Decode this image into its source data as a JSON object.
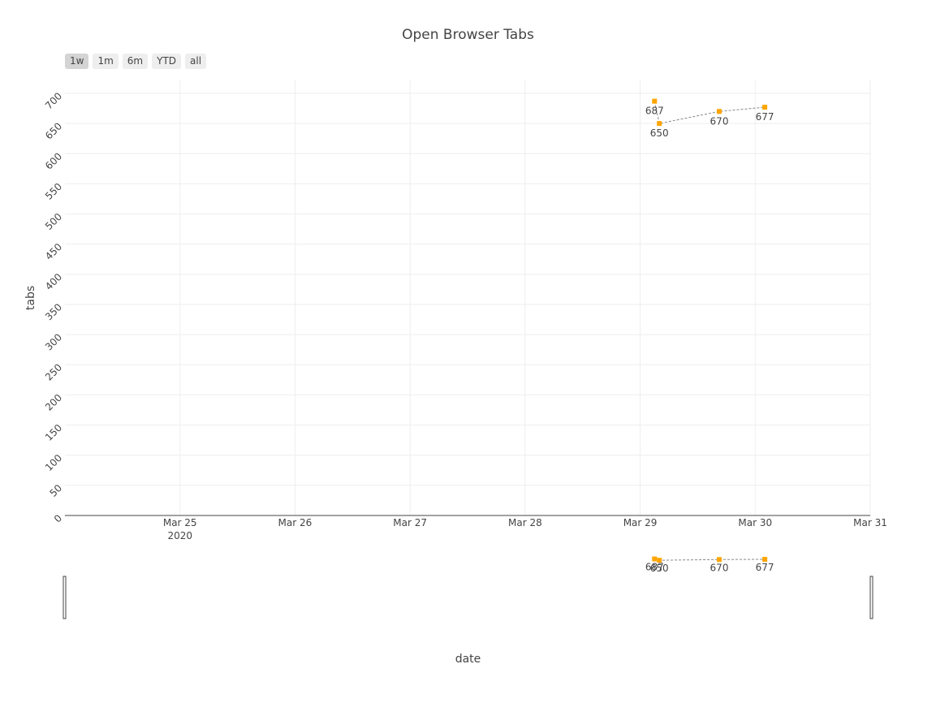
{
  "chart_data": {
    "type": "scatter",
    "mode": "lines+markers+text",
    "title": "Open Browser Tabs",
    "xlabel": "date",
    "ylabel": "tabs",
    "x_axis": {
      "type": "date",
      "range": [
        "2020-03-24 00:00",
        "2020-03-31 00:00"
      ],
      "tick_labels": [
        "Mar 25",
        "Mar 26",
        "Mar 27",
        "Mar 28",
        "Mar 29",
        "Mar 30",
        "Mar 31"
      ],
      "tick_values": [
        "2020-03-25",
        "2020-03-26",
        "2020-03-27",
        "2020-03-28",
        "2020-03-29",
        "2020-03-30",
        "2020-03-31"
      ],
      "year_label": "2020"
    },
    "y_axis": {
      "range": [
        0,
        700
      ],
      "tick_values": [
        0,
        50,
        100,
        150,
        200,
        250,
        300,
        350,
        400,
        450,
        500,
        550,
        600,
        650,
        700
      ]
    },
    "grid": true,
    "series": [
      {
        "x": [
          "2020-03-29 03:00",
          "2020-03-29 04:00",
          "2020-03-29 16:30",
          "2020-03-30 02:00"
        ],
        "y": [
          687,
          650,
          670,
          677
        ],
        "labels": [
          "687",
          "650",
          "670",
          "677"
        ],
        "marker_color": "#FFA500",
        "line_color": "#888888",
        "line_style": "dashed"
      }
    ],
    "range_slider": true
  },
  "range_selector": {
    "buttons": [
      {
        "label": "1w",
        "active": true
      },
      {
        "label": "1m",
        "active": false
      },
      {
        "label": "6m",
        "active": false
      },
      {
        "label": "YTD",
        "active": false
      },
      {
        "label": "all",
        "active": false
      }
    ]
  }
}
